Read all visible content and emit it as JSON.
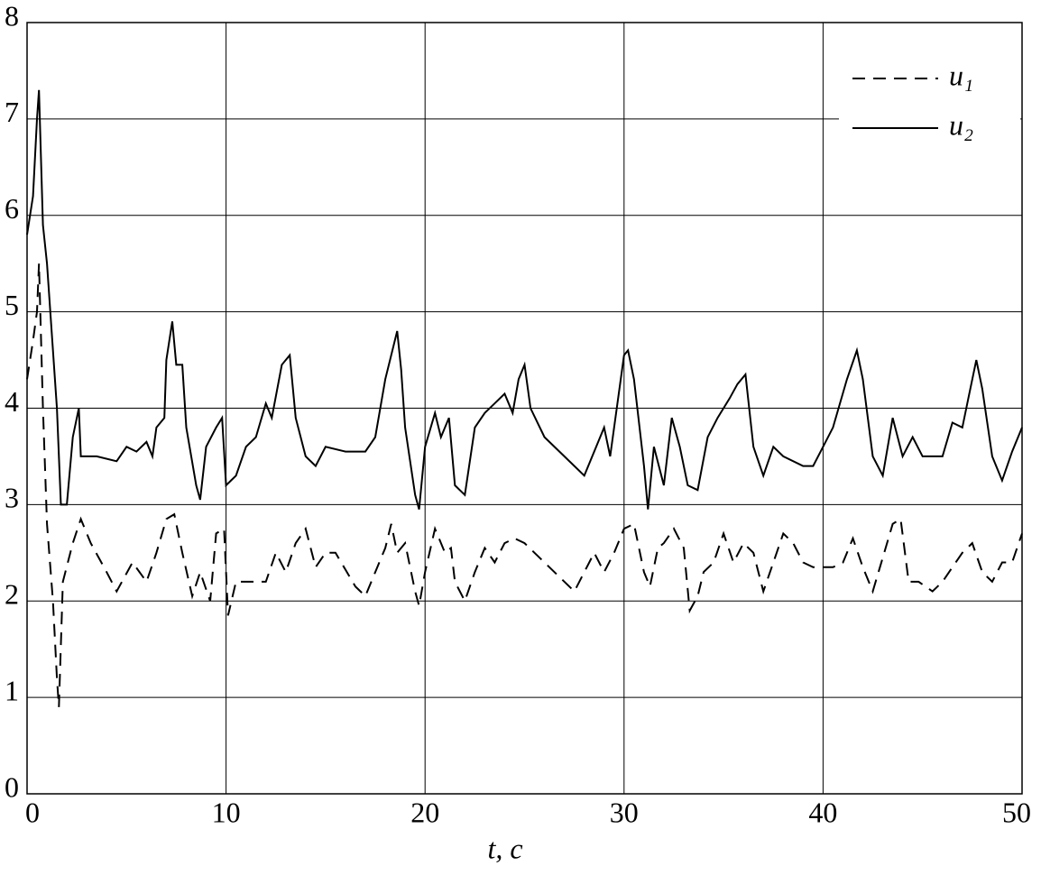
{
  "chart_data": {
    "type": "line",
    "xlabel": "t, c",
    "xlim": [
      0,
      50
    ],
    "xticks": [
      0,
      10,
      20,
      30,
      40,
      50
    ],
    "ylim": [
      0,
      8
    ],
    "yticks": [
      0,
      1,
      2,
      3,
      4,
      5,
      6,
      7,
      8
    ],
    "grid": true,
    "legend": "upper right",
    "series": [
      {
        "name": "u₁",
        "color": "#000000",
        "linestyle": "dashed",
        "x": [
          0,
          0.3,
          0.5,
          0.6,
          0.8,
          1.0,
          1.3,
          1.5,
          1.6,
          1.8,
          2.3,
          2.7,
          3.2,
          4.0,
          4.5,
          5.3,
          6.0,
          6.5,
          7.0,
          7.4,
          7.8,
          8.3,
          8.7,
          9.2,
          9.5,
          9.9,
          10.1,
          10.5,
          11,
          12,
          12.5,
          13,
          13.5,
          14,
          14.5,
          15,
          15.5,
          16.5,
          17,
          17.5,
          18,
          18.3,
          18.6,
          19,
          19.5,
          19.7,
          20,
          20.5,
          21,
          21.3,
          21.5,
          22,
          22.5,
          23,
          23.5,
          24,
          24.5,
          25,
          25.5,
          26.5,
          27.5,
          28,
          28.5,
          29,
          29.5,
          30,
          30.5,
          31,
          31.3,
          31.7,
          32,
          32.5,
          33,
          33.3,
          33.7,
          34,
          34.5,
          35,
          35.5,
          36,
          36.5,
          37,
          37.5,
          38,
          38.5,
          39,
          39.5,
          40,
          40.5,
          41,
          41.5,
          42,
          42.5,
          43,
          43.5,
          43.9,
          44.3,
          44.8,
          45.5,
          46,
          46.5,
          47,
          47.5,
          48,
          48.5,
          49,
          49.5,
          50
        ],
        "values": [
          4.3,
          4.7,
          5.0,
          5.5,
          4.0,
          2.8,
          2.0,
          1.2,
          0.9,
          2.2,
          2.6,
          2.85,
          2.6,
          2.3,
          2.1,
          2.4,
          2.2,
          2.5,
          2.85,
          2.9,
          2.5,
          2.05,
          2.3,
          2.0,
          2.7,
          2.75,
          1.85,
          2.2,
          2.2,
          2.2,
          2.5,
          2.3,
          2.6,
          2.75,
          2.35,
          2.5,
          2.5,
          2.15,
          2.05,
          2.3,
          2.55,
          2.8,
          2.5,
          2.6,
          2.1,
          1.95,
          2.3,
          2.75,
          2.5,
          2.55,
          2.2,
          2.0,
          2.3,
          2.55,
          2.4,
          2.6,
          2.65,
          2.6,
          2.5,
          2.3,
          2.1,
          2.3,
          2.5,
          2.3,
          2.5,
          2.75,
          2.8,
          2.3,
          2.15,
          2.55,
          2.6,
          2.75,
          2.55,
          1.9,
          2.05,
          2.3,
          2.4,
          2.7,
          2.4,
          2.6,
          2.5,
          2.1,
          2.4,
          2.7,
          2.6,
          2.4,
          2.35,
          2.35,
          2.35,
          2.4,
          2.65,
          2.35,
          2.1,
          2.45,
          2.8,
          2.85,
          2.2,
          2.2,
          2.1,
          2.2,
          2.35,
          2.5,
          2.6,
          2.3,
          2.2,
          2.4,
          2.4,
          2.7
        ]
      },
      {
        "name": "u₂",
        "color": "#000000",
        "linestyle": "solid",
        "x": [
          0,
          0.3,
          0.5,
          0.6,
          0.8,
          1.0,
          1.5,
          1.7,
          2.0,
          2.3,
          2.6,
          2.7,
          3.5,
          4.5,
          5,
          5.5,
          6,
          6.3,
          6.5,
          6.9,
          7.0,
          7.3,
          7.5,
          7.8,
          8.0,
          8.5,
          8.7,
          9.0,
          9.5,
          9.8,
          10.0,
          10.5,
          11,
          11.5,
          12,
          12.3,
          12.8,
          13.2,
          13.5,
          14,
          14.5,
          15,
          16,
          17,
          17.5,
          18,
          18.6,
          18.8,
          19,
          19.5,
          19.7,
          20,
          20.5,
          20.8,
          21.2,
          21.5,
          22,
          22.5,
          23,
          23.5,
          24,
          24.4,
          24.7,
          25,
          25.3,
          26,
          27,
          27.5,
          28,
          28.5,
          29,
          29.3,
          29.6,
          30,
          30.2,
          30.5,
          31,
          31.2,
          31.5,
          32,
          32.4,
          32.8,
          33.2,
          33.7,
          34.2,
          34.7,
          35.3,
          35.7,
          36.1,
          36.5,
          37,
          37.5,
          38,
          39,
          39.5,
          40,
          40.5,
          41.2,
          41.7,
          42,
          42.5,
          43,
          43.5,
          44,
          44.5,
          45,
          46,
          46.5,
          47,
          47.3,
          47.7,
          48,
          48.5,
          49,
          49.5,
          50
        ],
        "values": [
          5.8,
          6.2,
          7.0,
          7.3,
          5.9,
          5.5,
          4.0,
          3.0,
          3.0,
          3.7,
          4.0,
          3.5,
          3.5,
          3.45,
          3.6,
          3.55,
          3.65,
          3.5,
          3.8,
          3.9,
          4.5,
          4.9,
          4.45,
          4.45,
          3.8,
          3.2,
          3.05,
          3.6,
          3.8,
          3.9,
          3.2,
          3.3,
          3.6,
          3.7,
          4.05,
          3.9,
          4.45,
          4.55,
          3.9,
          3.5,
          3.4,
          3.6,
          3.55,
          3.55,
          3.7,
          4.3,
          4.8,
          4.4,
          3.8,
          3.1,
          2.95,
          3.6,
          3.95,
          3.7,
          3.9,
          3.2,
          3.1,
          3.8,
          3.95,
          4.05,
          4.15,
          3.95,
          4.3,
          4.45,
          4.0,
          3.7,
          3.5,
          3.4,
          3.3,
          3.55,
          3.8,
          3.5,
          3.95,
          4.55,
          4.6,
          4.3,
          3.4,
          2.95,
          3.6,
          3.2,
          3.9,
          3.6,
          3.2,
          3.15,
          3.7,
          3.9,
          4.1,
          4.25,
          4.35,
          3.6,
          3.3,
          3.6,
          3.5,
          3.4,
          3.4,
          3.6,
          3.8,
          4.3,
          4.6,
          4.3,
          3.5,
          3.3,
          3.9,
          3.5,
          3.7,
          3.5,
          3.5,
          3.85,
          3.8,
          4.1,
          4.5,
          4.2,
          3.5,
          3.25,
          3.55,
          3.8
        ]
      }
    ]
  }
}
